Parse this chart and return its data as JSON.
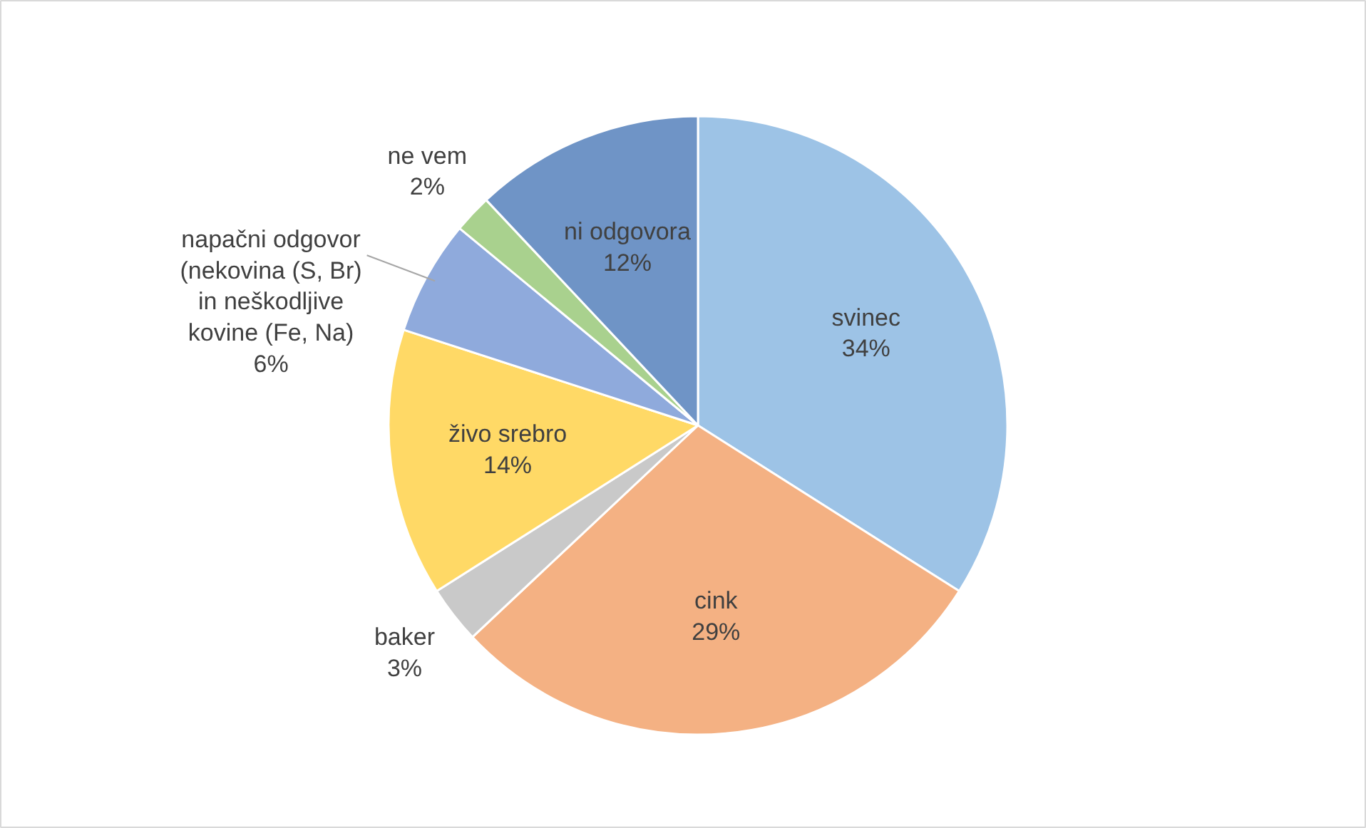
{
  "chart_data": {
    "type": "pie",
    "categories": [
      "svinec",
      "cink",
      "baker",
      "živo srebro",
      "napačni odgovor\n(nekovina (S, Br)\nin neškodljive\nkovine (Fe, Na)",
      "ne vem",
      "ni odgovora"
    ],
    "values": [
      34,
      29,
      3,
      14,
      6,
      2,
      12
    ],
    "colors": [
      "#9dc3e6",
      "#f4b183",
      "#c9c9c9",
      "#ffd966",
      "#8faadc",
      "#a9d18e",
      "#6f94c6"
    ],
    "value_labels": [
      "34%",
      "29%",
      "3%",
      "14%",
      "6%",
      "2%",
      "12%"
    ]
  }
}
